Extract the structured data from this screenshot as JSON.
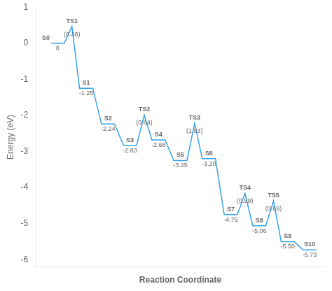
{
  "chart_data": {
    "type": "line",
    "xlabel": "Reaction Coordinate",
    "ylabel": "Energy (eV)",
    "categories": [
      "S0",
      "S1",
      "S2",
      "S3",
      "S4",
      "S5",
      "S6",
      "S7",
      "S8",
      "S9",
      "S10"
    ],
    "values": [
      0.0,
      -1.25,
      -2.24,
      -2.83,
      -2.68,
      -3.25,
      -3.2,
      -4.75,
      -5.06,
      -5.5,
      -5.73
    ],
    "value_labels": [
      "0",
      "-1.25",
      "-2.24",
      "-2.83",
      "-2.68",
      "-3.25",
      "-3.20",
      "-4.75",
      "-5.06",
      "-5.50",
      "-5.73"
    ],
    "data_labels": true,
    "transition_states": [
      {
        "name": "TS1",
        "between": [
          "S0",
          "S1"
        ],
        "energy": 0.46,
        "barrier": 0.46,
        "barrier_label": "(0.46)"
      },
      {
        "name": "TS2",
        "between": [
          "S3",
          "S4"
        ],
        "energy": -1.99,
        "barrier": 0.84,
        "barrier_label": "(0.84)"
      },
      {
        "name": "TS3",
        "between": [
          "S5",
          "S6"
        ],
        "energy": -2.22,
        "barrier": 1.03,
        "barrier_label": "(1.03)"
      },
      {
        "name": "TS4",
        "between": [
          "S7",
          "S8"
        ],
        "energy": -4.16,
        "barrier": 0.59,
        "barrier_label": "(0.59)"
      },
      {
        "name": "TS5",
        "between": [
          "S8",
          "S9"
        ],
        "energy": -4.37,
        "barrier": 0.69,
        "barrier_label": "(0.69)"
      }
    ],
    "ylim": [
      -6.2,
      1.0
    ],
    "yticks": [
      -6,
      -5,
      -4,
      -3,
      -2,
      -1,
      0,
      1
    ],
    "grid": false,
    "tick_labels": "y"
  }
}
